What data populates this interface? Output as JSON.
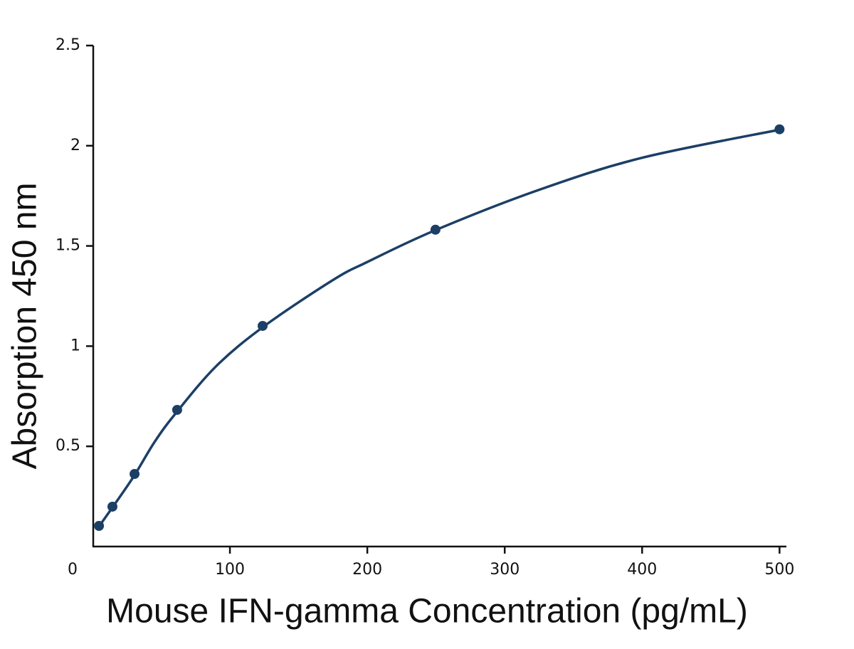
{
  "chart_data": {
    "type": "scatter",
    "x_label": "Mouse IFN-gamma Concentration (pg/mL)",
    "y_label": "Absorption 450 nm",
    "x": [
      4.7,
      14.5,
      30.6,
      61.6,
      123.8,
      249.6,
      500
    ],
    "series": [
      {
        "color": "#1c3f66",
        "values": [
          0.103,
          0.199,
          0.362,
          0.682,
          1.101,
          1.581,
          2.082
        ]
      }
    ],
    "fit_curve": {
      "color": "#1c3f66",
      "x": [
        4.7,
        15,
        30,
        45,
        60,
        90,
        125,
        175,
        200,
        250,
        325,
        400,
        500
      ],
      "y": [
        0.1,
        0.2,
        0.35,
        0.52,
        0.66,
        0.9,
        1.1,
        1.33,
        1.42,
        1.58,
        1.78,
        1.94,
        2.08
      ]
    },
    "xlim": [
      0,
      505
    ],
    "ylim": [
      0,
      2.5
    ],
    "xticks": [
      0,
      100,
      200,
      300,
      400,
      500
    ],
    "yticks": [
      0.5,
      1,
      1.5,
      2,
      2.5
    ]
  }
}
